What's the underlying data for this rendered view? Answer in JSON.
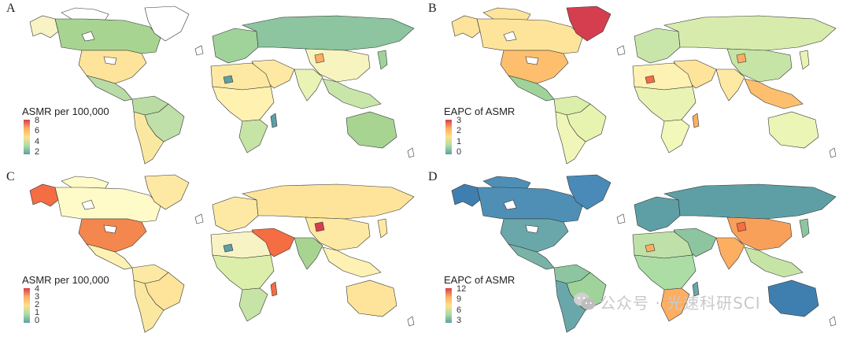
{
  "panels": [
    {
      "letter": "A",
      "legend": {
        "title": "ASMR per 100,000",
        "ticks": [
          "8",
          "6",
          "4",
          "2"
        ],
        "colors": [
          "#d53e4f",
          "#fdae61",
          "#fee08b",
          "#abdda4",
          "#5e9fa6"
        ]
      },
      "fills": {
        "na": "#a8d492",
        "us": "#fde49a",
        "ak": "#f7f3c4",
        "gl": "#ffffff",
        "ca_ar": "#ffffff",
        "mx": "#b9dca6",
        "sa_n": "#b8dca2",
        "sa_s": "#fbe8a0",
        "br": "#bfe0a8",
        "eu": "#9fd39a",
        "ru": "#8cc59f",
        "af_n": "#fde9a3",
        "af_m": "#fff1b0",
        "af_s": "#c6e4a6",
        "me": "#fde9a3",
        "in": "#e8f3b4",
        "cn": "#f7f4c0",
        "sea": "#c9e6aa",
        "jp": "#9fd39a",
        "au": "#a8d492",
        "spot1": "#fdae61",
        "spot2": "#5e9fa6",
        "spot3": "#5e9fa6"
      }
    },
    {
      "letter": "B",
      "legend": {
        "title": "EAPC of ASMR",
        "ticks": [
          "3",
          "2",
          "1",
          "0"
        ],
        "colors": [
          "#d53e4f",
          "#fdae61",
          "#fee08b",
          "#abdda4",
          "#5e9fa6"
        ]
      },
      "fills": {
        "na": "#fde49a",
        "us": "#fdbe6e",
        "ak": "#fde49a",
        "gl": "#d53e4f",
        "ca_ar": "#fde49a",
        "mx": "#9fd39a",
        "sa_n": "#dcefaa",
        "sa_s": "#f0f6b8",
        "br": "#e6f4b0",
        "eu": "#c9e6aa",
        "ru": "#d7ecac",
        "af_n": "#fdf1b3",
        "af_m": "#e8f3b4",
        "af_s": "#f2f7ba",
        "me": "#fde49a",
        "in": "#fde9a3",
        "cn": "#c6e4a6",
        "sea": "#fdbe6e",
        "jp": "#e8f3b4",
        "au": "#eaf5b6",
        "spot1": "#fdae61",
        "spot2": "#f46d43",
        "spot3": "#fdae61"
      }
    },
    {
      "letter": "C",
      "legend": {
        "title": "ASMR per 100,000",
        "ticks": [
          "4",
          "3",
          "2",
          "1",
          "0"
        ],
        "colors": [
          "#d53e4f",
          "#fdae61",
          "#fee08b",
          "#abdda4",
          "#5e9fa6"
        ]
      },
      "fills": {
        "na": "#fffbc8",
        "us": "#f4874d",
        "ak": "#f46d43",
        "gl": "#fde9a3",
        "ca_ar": "#fffbc8",
        "mx": "#fdf1b3",
        "sa_n": "#fde9a3",
        "sa_s": "#fbe8a0",
        "br": "#fde49a",
        "eu": "#fde9a3",
        "ru": "#fde49a",
        "af_n": "#f7f3c4",
        "af_m": "#dcefaa",
        "af_s": "#c6e4a6",
        "me": "#f46d43",
        "in": "#a8d492",
        "cn": "#fde9a3",
        "sea": "#fdf1b3",
        "jp": "#fde9a3",
        "au": "#fde49a",
        "spot1": "#d53e4f",
        "spot2": "#5e9fa6",
        "spot3": "#f46d43"
      }
    },
    {
      "letter": "D",
      "legend": {
        "title": "EAPC of ASMR",
        "ticks": [
          "12",
          "9",
          "6",
          "3"
        ],
        "colors": [
          "#d53e4f",
          "#fdae61",
          "#fee08b",
          "#abdda4",
          "#5e9fa6"
        ]
      },
      "fills": {
        "na": "#4f8fb5",
        "us": "#6aa7aa",
        "ak": "#3f7fb0",
        "gl": "#4a8ab8",
        "ca_ar": "#4f8fb5",
        "mx": "#79b3a8",
        "sa_n": "#8cc59f",
        "sa_s": "#6aa7aa",
        "br": "#9fd39a",
        "eu": "#5e9fa6",
        "ru": "#5e9fa6",
        "af_n": "#bfe0a8",
        "af_m": "#abdda4",
        "af_s": "#fdae61",
        "me": "#8cc59f",
        "in": "#fdae61",
        "cn": "#f8a05a",
        "sea": "#c6e4a6",
        "jp": "#8cc59f",
        "au": "#3f7fb0",
        "spot1": "#f46d43",
        "spot2": "#fdae61",
        "spot3": "#6aa7aa"
      }
    }
  ],
  "watermark": {
    "text": "公众号 · 光速科研SCI",
    "icon": "wechat-icon",
    "color": "#c9c9c9"
  }
}
